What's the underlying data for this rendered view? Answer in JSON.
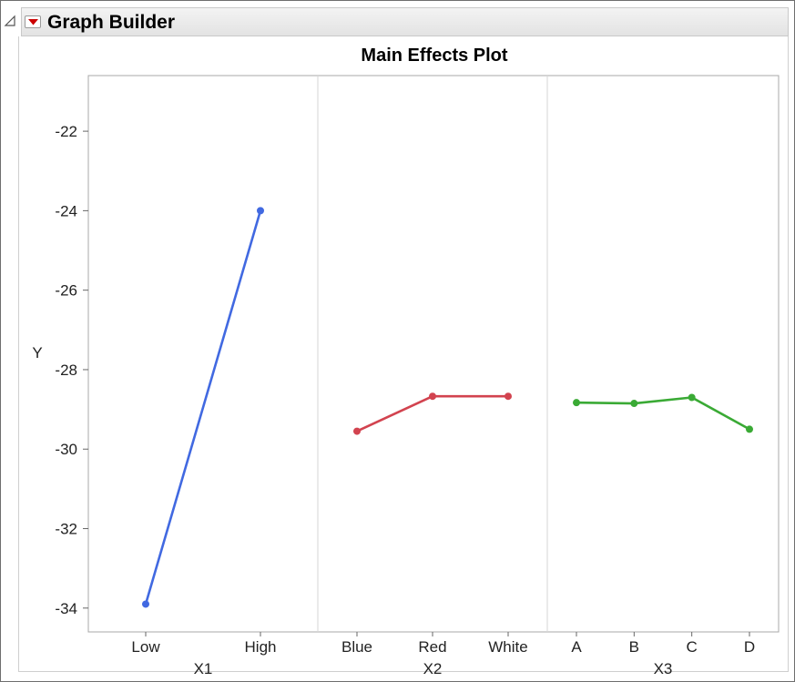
{
  "app": {
    "title": "Graph Builder"
  },
  "chart_data": {
    "type": "line",
    "title": "Main Effects Plot",
    "ylabel": "Y",
    "ylim": [
      -34.6,
      -20.6
    ],
    "yticks": [
      -22,
      -24,
      -26,
      -28,
      -30,
      -32,
      -34
    ],
    "grid": false,
    "legend": "none",
    "panels": [
      {
        "xlabel": "X1",
        "categories": [
          "Low",
          "High"
        ],
        "values": [
          -33.9,
          -24.0
        ],
        "color": "#4169e1"
      },
      {
        "xlabel": "X2",
        "categories": [
          "Blue",
          "Red",
          "White"
        ],
        "values": [
          -29.55,
          -28.67,
          -28.67
        ],
        "color": "#d2434f"
      },
      {
        "xlabel": "X3",
        "categories": [
          "A",
          "B",
          "C",
          "D"
        ],
        "values": [
          -28.83,
          -28.85,
          -28.7,
          -29.5
        ],
        "color": "#3aaa35"
      }
    ]
  },
  "icons": {
    "disclosure": "disclosure-triangle-icon",
    "hotspot": "red-triangle-menu-icon"
  }
}
